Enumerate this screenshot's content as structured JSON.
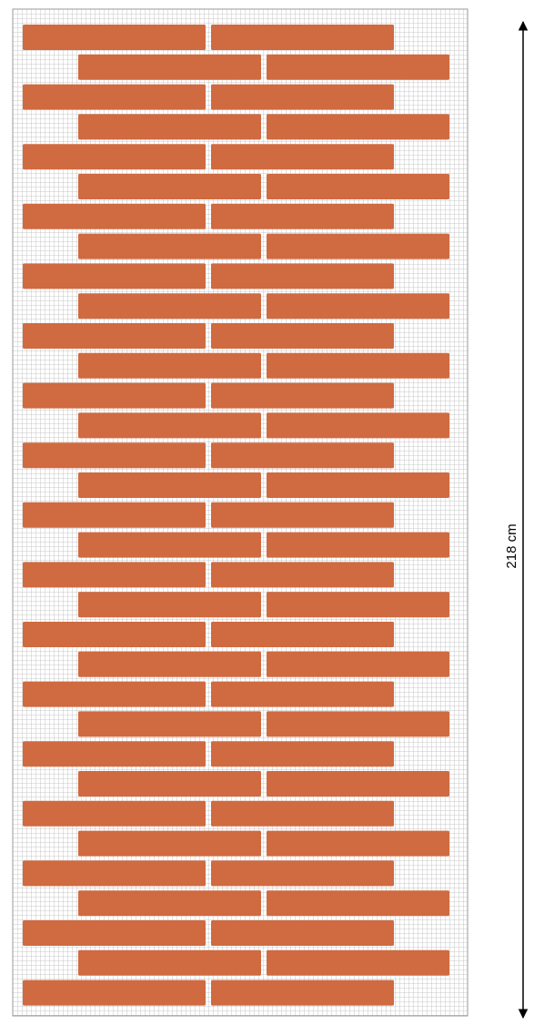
{
  "dimension": {
    "label": "218 cm"
  }
}
